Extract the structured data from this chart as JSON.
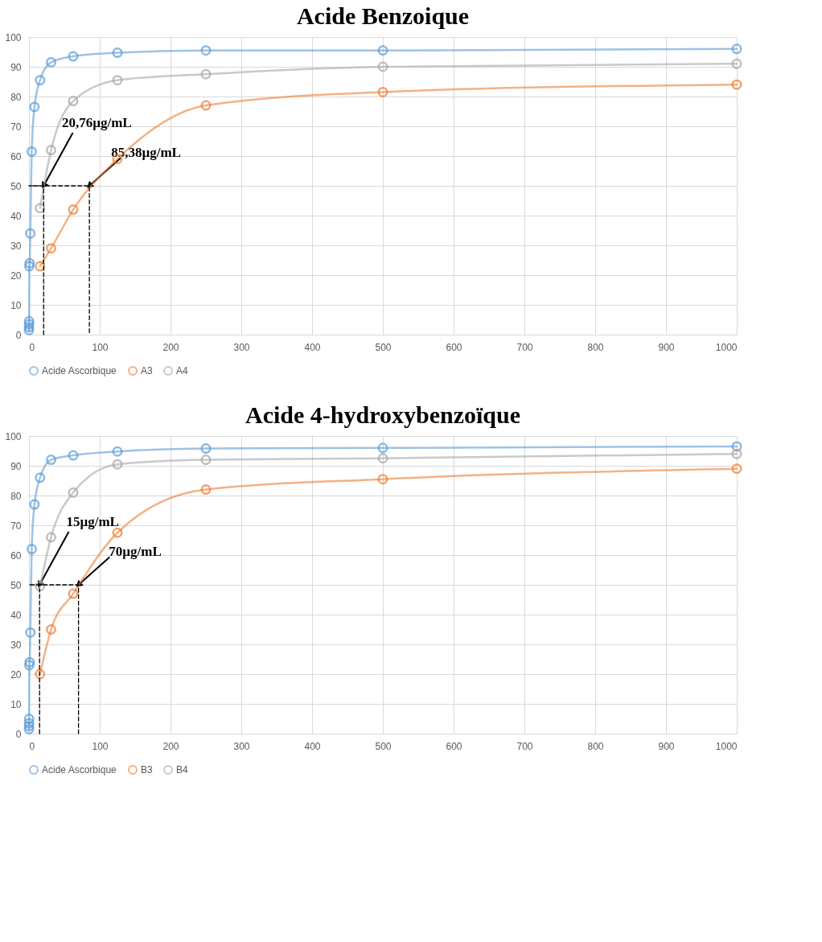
{
  "chart_data": [
    {
      "type": "line",
      "title": "Acide Benzoique",
      "marker": "circle",
      "grid": true,
      "legend": "bottom",
      "xlim": [
        0,
        1000
      ],
      "xticks": [
        0,
        100,
        200,
        300,
        400,
        500,
        600,
        700,
        800,
        900,
        1000
      ],
      "ylim": [
        0,
        100
      ],
      "yticks": [
        0,
        10,
        20,
        30,
        40,
        50,
        60,
        70,
        80,
        90,
        100
      ],
      "annotations": [
        {
          "text": "20,76µg/mL",
          "x": 20.76,
          "y": 50
        },
        {
          "text": "85,38µg/mL",
          "x": 85.38,
          "y": 50
        }
      ],
      "series": [
        {
          "name": "Acide Ascorbique",
          "color": "#5b9bd5",
          "x": [
            0.03,
            0.06,
            0.12,
            0.24,
            0.49,
            0.98,
            1.95,
            3.91,
            7.81,
            15.63,
            31.25,
            62.5,
            125,
            250,
            500,
            1000
          ],
          "values": [
            1.5,
            2.5,
            3.5,
            4.5,
            23,
            24,
            34,
            61.5,
            76.5,
            85.5,
            91.5,
            93.5,
            94.7,
            95.5,
            95.5,
            96
          ]
        },
        {
          "name": "A3",
          "color": "#ed7d31",
          "x": [
            15.63,
            31.25,
            62.5,
            125,
            250,
            500,
            1000
          ],
          "values": [
            23,
            29,
            42,
            59,
            77,
            81.5,
            84
          ]
        },
        {
          "name": "A4",
          "color": "#a5a5a5",
          "x": [
            15.63,
            31.25,
            62.5,
            125,
            250,
            500,
            1000
          ],
          "values": [
            42.5,
            62,
            78.5,
            85.5,
            87.5,
            90,
            91
          ]
        },
        {
          "type": "line",
          "line_style": "dashed",
          "marker": "none",
          "color": "#000000",
          "x": [
            20.76,
            20.76,
            0,
            85.38,
            85.38
          ],
          "values": [
            0,
            50,
            50,
            50,
            0
          ]
        }
      ]
    },
    {
      "type": "line",
      "title": "Acide 4-hydroxybenzoïque",
      "marker": "circle",
      "grid": true,
      "legend": "bottom",
      "xlim": [
        0,
        1000
      ],
      "xticks": [
        0,
        100,
        200,
        300,
        400,
        500,
        600,
        700,
        800,
        900,
        1000
      ],
      "ylim": [
        0,
        100
      ],
      "yticks": [
        0,
        10,
        20,
        30,
        40,
        50,
        60,
        70,
        80,
        90,
        100
      ],
      "annotations": [
        {
          "text": "15µg/mL",
          "x": 15,
          "y": 50
        },
        {
          "text": "70µg/mL",
          "x": 70,
          "y": 50
        }
      ],
      "series": [
        {
          "name": "Acide Ascorbique",
          "color": "#5b9bd5",
          "x": [
            0.03,
            0.06,
            0.12,
            0.24,
            0.49,
            0.98,
            1.95,
            3.91,
            7.81,
            15.63,
            31.25,
            62.5,
            125,
            250,
            500,
            1000
          ],
          "values": [
            1.5,
            2.5,
            3.5,
            5,
            23,
            24,
            34,
            62,
            77,
            86,
            92,
            93.5,
            94.8,
            95.8,
            96,
            96.5
          ]
        },
        {
          "name": "B3",
          "color": "#ed7d31",
          "x": [
            15.63,
            31.25,
            62.5,
            125,
            250,
            500,
            1000
          ],
          "values": [
            20,
            35,
            47,
            67.5,
            82,
            85.5,
            89
          ]
        },
        {
          "name": "B4",
          "color": "#a5a5a5",
          "x": [
            15.63,
            31.25,
            62.5,
            125,
            250,
            500,
            1000
          ],
          "values": [
            49.5,
            66,
            81,
            90.5,
            92,
            92.5,
            94
          ]
        },
        {
          "type": "line",
          "line_style": "dashed",
          "marker": "none",
          "color": "#000000",
          "x": [
            15,
            15,
            0,
            70,
            70
          ],
          "values": [
            0,
            50,
            50,
            50,
            0
          ]
        }
      ]
    }
  ]
}
